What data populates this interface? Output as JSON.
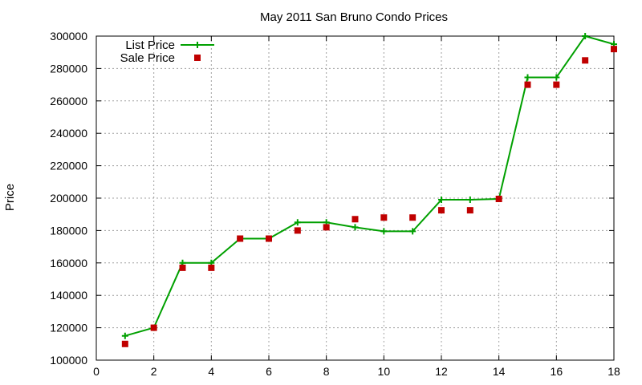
{
  "chart_data": {
    "type": "line",
    "title": "May 2011 San Bruno Condo Prices",
    "xlabel": "",
    "ylabel": "Price",
    "xlim": [
      0,
      18
    ],
    "ylim": [
      100000,
      300000
    ],
    "x_ticks": [
      0,
      2,
      4,
      6,
      8,
      10,
      12,
      14,
      16,
      18
    ],
    "y_ticks": [
      100000,
      120000,
      140000,
      160000,
      180000,
      200000,
      220000,
      240000,
      260000,
      280000,
      300000
    ],
    "grid": true,
    "legend_position": "top-left",
    "series": [
      {
        "name": "List Price",
        "style": "line-with-plus-markers",
        "color": "#00a000",
        "x": [
          1,
          2,
          3,
          4,
          5,
          6,
          7,
          8,
          9,
          10,
          11,
          12,
          13,
          14,
          15,
          16,
          17,
          18
        ],
        "y": [
          115000,
          120000,
          160000,
          160000,
          175000,
          175000,
          185000,
          185000,
          182000,
          179500,
          179500,
          199000,
          199000,
          199500,
          274500,
          274500,
          300000,
          295000
        ]
      },
      {
        "name": "Sale Price",
        "style": "square-markers",
        "color": "#c00000",
        "x": [
          1,
          2,
          3,
          4,
          5,
          6,
          7,
          8,
          9,
          10,
          11,
          12,
          13,
          14,
          15,
          16,
          17,
          18
        ],
        "y": [
          110000,
          120000,
          157000,
          157000,
          175000,
          175000,
          180000,
          182000,
          187000,
          188000,
          188000,
          192500,
          192500,
          199500,
          270000,
          270000,
          285000,
          292000
        ]
      }
    ]
  }
}
